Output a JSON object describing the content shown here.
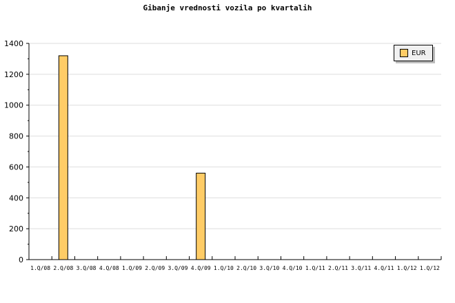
{
  "chart_data": {
    "type": "bar",
    "title": "Gibanje vrednosti vozila po kvartalih",
    "categories": [
      "1.Q/08",
      "2.Q/08",
      "3.Q/08",
      "4.Q/08",
      "1.Q/09",
      "2.Q/09",
      "3.Q/09",
      "4.Q/09",
      "1.Q/10",
      "2.Q/10",
      "3.Q/10",
      "4.Q/10",
      "1.Q/11",
      "2.Q/11",
      "3.Q/11",
      "4.Q/11",
      "1.Q/12",
      "1.Q/12"
    ],
    "series": [
      {
        "name": "EUR",
        "color": "#ffcc66",
        "values": [
          0,
          1320,
          0,
          0,
          0,
          0,
          0,
          560,
          0,
          0,
          0,
          0,
          0,
          0,
          0,
          0,
          0,
          0
        ]
      }
    ],
    "ylim": [
      0,
      1400
    ],
    "yticks": [
      0,
      200,
      400,
      600,
      800,
      1000,
      1200,
      1400
    ],
    "xlabel": "",
    "ylabel": "",
    "grid": true,
    "legend_position": "top-right"
  }
}
